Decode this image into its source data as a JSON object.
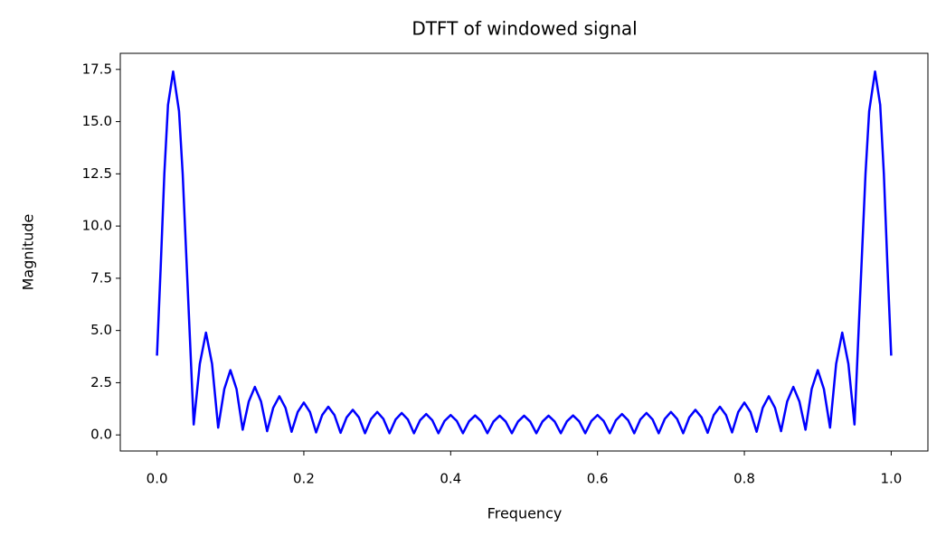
{
  "chart_data": {
    "type": "line",
    "title": "DTFT of windowed signal",
    "x_label": "Frequency",
    "y_label": "Magnitude",
    "x": [
      0,
      0.005,
      0.01,
      0.015,
      0.022,
      0.03,
      0.035,
      0.04,
      0.045,
      0.05,
      0.0583,
      0.0667,
      0.075,
      0.0833,
      0.0917,
      0.1,
      0.1083,
      0.1167,
      0.125,
      0.1333,
      0.1417,
      0.15,
      0.1583,
      0.1667,
      0.175,
      0.1833,
      0.1917,
      0.2,
      0.2083,
      0.2167,
      0.225,
      0.2333,
      0.2417,
      0.25,
      0.2583,
      0.2667,
      0.275,
      0.2833,
      0.2917,
      0.3,
      0.3083,
      0.3167,
      0.325,
      0.3333,
      0.3417,
      0.35,
      0.3583,
      0.3667,
      0.375,
      0.3833,
      0.3917,
      0.4,
      0.4083,
      0.4167,
      0.425,
      0.4333,
      0.4417,
      0.45,
      0.4583,
      0.4667,
      0.475,
      0.4833,
      0.4917,
      0.5,
      0.5083,
      0.5167,
      0.525,
      0.5333,
      0.5417,
      0.55,
      0.5583,
      0.5667,
      0.575,
      0.5833,
      0.5917,
      0.6,
      0.6083,
      0.6167,
      0.625,
      0.6333,
      0.6417,
      0.65,
      0.6583,
      0.6667,
      0.675,
      0.6833,
      0.6917,
      0.7,
      0.7083,
      0.7167,
      0.725,
      0.7333,
      0.7417,
      0.75,
      0.7583,
      0.7667,
      0.775,
      0.7833,
      0.7917,
      0.8,
      0.8083,
      0.8167,
      0.825,
      0.8333,
      0.8417,
      0.85,
      0.8583,
      0.8667,
      0.875,
      0.8833,
      0.8917,
      0.9,
      0.9083,
      0.9167,
      0.925,
      0.9333,
      0.9417,
      0.95,
      0.955,
      0.96,
      0.965,
      0.97,
      0.978,
      0.985,
      0.99,
      0.995,
      1.0
    ],
    "series": [
      {
        "color": "#0000ff",
        "values": [
          3.8,
          8,
          12.5,
          15.8,
          17.4,
          15.5,
          12.5,
          8.5,
          4.5,
          0.5,
          3.4,
          4.9,
          3.4,
          0.35,
          2.2,
          3.1,
          2.2,
          0.25,
          1.6,
          2.3,
          1.6,
          0.18,
          1.3,
          1.85,
          1.3,
          0.15,
          1.1,
          1.55,
          1.1,
          0.12,
          0.95,
          1.35,
          0.95,
          0.1,
          0.84,
          1.2,
          0.84,
          0.08,
          0.77,
          1.1,
          0.77,
          0.08,
          0.74,
          1.05,
          0.74,
          0.08,
          0.7,
          1.0,
          0.7,
          0.08,
          0.67,
          0.95,
          0.67,
          0.08,
          0.65,
          0.93,
          0.65,
          0.08,
          0.64,
          0.92,
          0.64,
          0.08,
          0.64,
          0.92,
          0.64,
          0.08,
          0.64,
          0.92,
          0.64,
          0.08,
          0.65,
          0.93,
          0.65,
          0.08,
          0.67,
          0.95,
          0.67,
          0.08,
          0.7,
          1.0,
          0.7,
          0.08,
          0.74,
          1.05,
          0.74,
          0.08,
          0.77,
          1.1,
          0.77,
          0.08,
          0.84,
          1.2,
          0.84,
          0.1,
          0.95,
          1.35,
          0.95,
          0.12,
          1.1,
          1.55,
          1.1,
          0.15,
          1.3,
          1.85,
          1.3,
          0.18,
          1.6,
          2.3,
          1.6,
          0.25,
          2.2,
          3.1,
          2.2,
          0.35,
          3.4,
          4.9,
          3.4,
          0.5,
          4.5,
          8.5,
          12.5,
          15.5,
          17.4,
          15.8,
          12.5,
          8,
          3.8
        ]
      }
    ],
    "xlim": [
      -0.05,
      1.05
    ],
    "ylim": [
      -0.77,
      18.27
    ],
    "xticks": [
      {
        "value": 0,
        "label": "0.0"
      },
      0.2,
      0.4,
      0.6,
      0.8,
      {
        "value": 1,
        "label": "1.0"
      }
    ],
    "yticks": [
      {
        "value": 0,
        "label": "0.0"
      },
      2.5,
      {
        "value": 5,
        "label": "5.0"
      },
      7.5,
      {
        "value": 10,
        "label": "10.0"
      },
      12.5,
      {
        "value": 15,
        "label": "15.0"
      },
      17.5
    ]
  }
}
